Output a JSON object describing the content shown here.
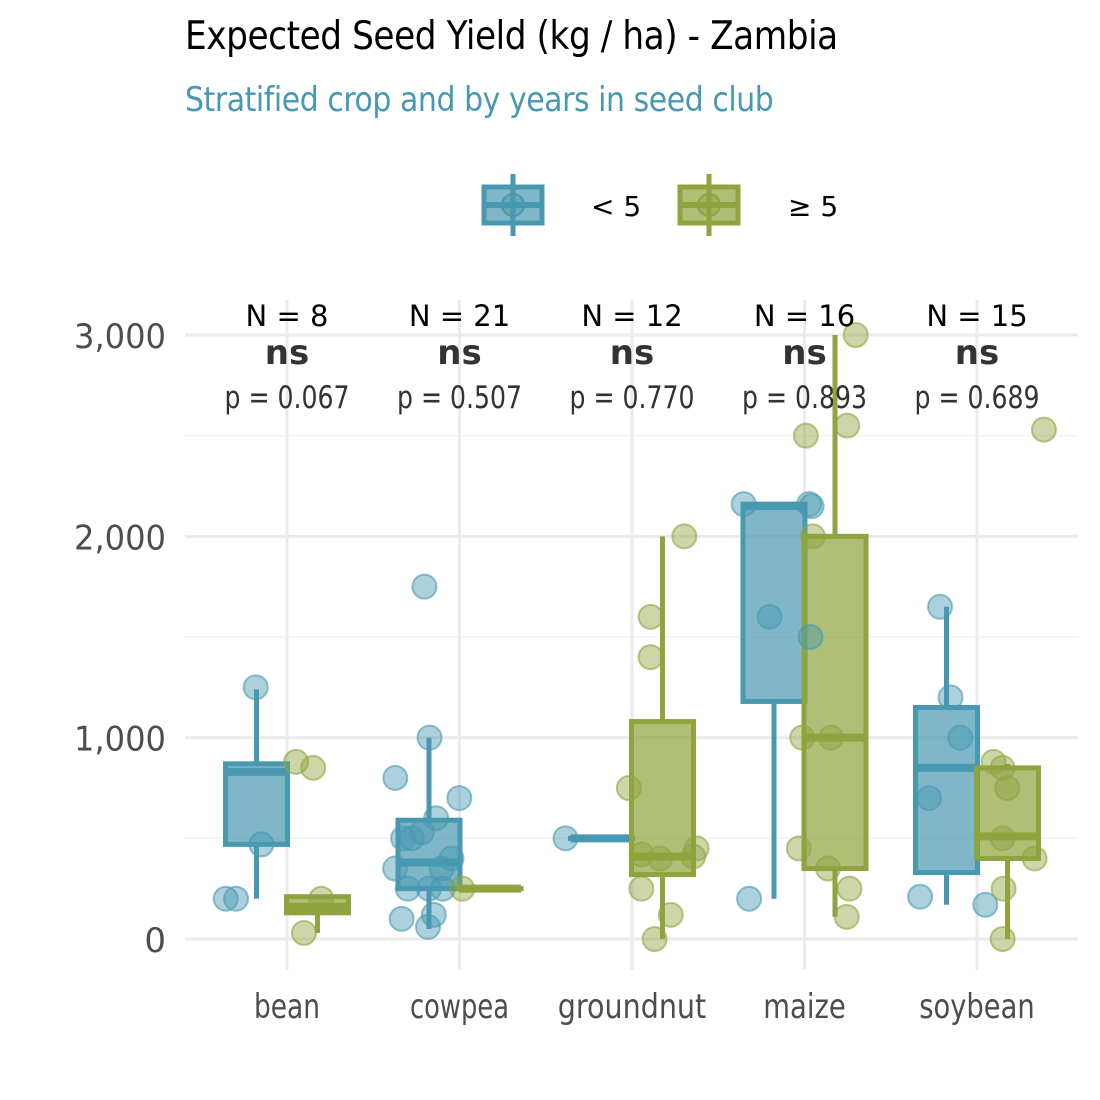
{
  "chart_data": {
    "type": "boxplot",
    "title": "Expected Seed Yield (kg / ha) - Zambia",
    "subtitle": "Stratified crop and by years in seed club",
    "legend": {
      "placement": "top",
      "entries": [
        "< 5",
        "≥ 5"
      ]
    },
    "colors": {
      "lt5": "#4898b1",
      "ge5": "#8fa33f",
      "grid": "#ebebeb",
      "axis_text": "#4d4d4d",
      "annot_text": "#333333"
    },
    "ylim": [
      0,
      3000
    ],
    "yticks": [
      0,
      1000,
      2000,
      3000
    ],
    "ytick_labels": [
      "0",
      "1,000",
      "2,000",
      "3,000"
    ],
    "grid": true,
    "categories": [
      "bean",
      "cowpea",
      "groundnut",
      "maize",
      "soybean"
    ],
    "annotations": [
      {
        "n": "N = 8",
        "sig": "ns",
        "p": "p = 0.067"
      },
      {
        "n": "N = 21",
        "sig": "ns",
        "p": "p = 0.507"
      },
      {
        "n": "N = 12",
        "sig": "ns",
        "p": "p = 0.770"
      },
      {
        "n": "N = 16",
        "sig": "ns",
        "p": "p = 0.893"
      },
      {
        "n": "N = 15",
        "sig": "ns",
        "p": "p = 0.689"
      }
    ],
    "series": [
      {
        "name": "< 5",
        "boxes": [
          {
            "min": 200,
            "q1": 470,
            "median": 830,
            "q3": 870,
            "max": 1240
          },
          {
            "min": 50,
            "q1": 250,
            "median": 380,
            "q3": 590,
            "max": 1000
          },
          {
            "min": 500,
            "q1": 500,
            "median": 500,
            "q3": 500,
            "max": 500
          },
          {
            "min": 200,
            "q1": 1180,
            "median": 2150,
            "q3": 2160,
            "max": 2160
          },
          {
            "min": 170,
            "q1": 330,
            "median": 850,
            "q3": 1150,
            "max": 1650
          }
        ],
        "points": [
          [
            1250,
            470,
            200,
            200
          ],
          [
            1750,
            1000,
            800,
            700,
            600,
            530,
            500,
            400,
            350,
            350,
            250,
            250,
            250,
            100,
            120,
            60,
            500
          ],
          [
            500
          ],
          [
            2160,
            2150,
            2160,
            1600,
            1500,
            200
          ],
          [
            1650,
            1200,
            1000,
            700,
            210,
            170
          ]
        ]
      },
      {
        "name": "≥ 5",
        "boxes": [
          {
            "min": 30,
            "q1": 130,
            "median": 160,
            "q3": 210,
            "max": 220
          },
          {
            "min": 250,
            "q1": 250,
            "median": 250,
            "q3": 250,
            "max": 250
          },
          {
            "min": 0,
            "q1": 320,
            "median": 410,
            "q3": 1080,
            "max": 2000
          },
          {
            "min": 110,
            "q1": 350,
            "median": 1000,
            "q3": 2000,
            "max": 3000
          },
          {
            "min": 0,
            "q1": 400,
            "median": 510,
            "q3": 850,
            "max": 870
          }
        ],
        "points": [
          [
            850,
            880,
            200,
            30
          ],
          [
            250
          ],
          [
            2000,
            1600,
            1400,
            750,
            450,
            420,
            410,
            400,
            250,
            120,
            0
          ],
          [
            3000,
            2550,
            2500,
            2000,
            1000,
            1000,
            450,
            350,
            250,
            110
          ],
          [
            2530,
            880,
            850,
            750,
            500,
            400,
            250,
            0
          ]
        ]
      }
    ]
  }
}
